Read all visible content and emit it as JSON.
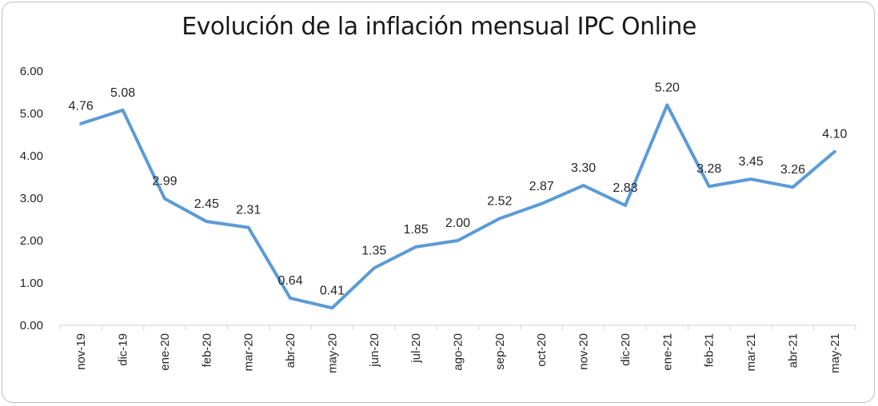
{
  "chart_data": {
    "type": "line",
    "title": "Evolución de la inflación mensual IPC Online",
    "xlabel": "",
    "ylabel": "",
    "ylim": [
      0,
      6
    ],
    "yticks": [
      "0.00",
      "1.00",
      "2.00",
      "3.00",
      "4.00",
      "5.00",
      "6.00"
    ],
    "categories": [
      "nov-19",
      "dic-19",
      "ene-20",
      "feb-20",
      "mar-20",
      "abr-20",
      "may-20",
      "jun-20",
      "jul-20",
      "ago-20",
      "sep-20",
      "oct-20",
      "nov-20",
      "dic-20",
      "ene-21",
      "feb-21",
      "mar-21",
      "abr-21",
      "may-21"
    ],
    "series": [
      {
        "values": [
          4.76,
          5.08,
          2.99,
          2.45,
          2.31,
          0.64,
          0.41,
          1.35,
          1.85,
          2.0,
          2.52,
          2.87,
          3.3,
          2.83,
          5.2,
          3.28,
          3.45,
          3.26,
          4.1
        ],
        "labels": [
          "4.76",
          "5.08",
          "2.99",
          "2.45",
          "2.31",
          "0.64",
          "0.41",
          "1.35",
          "1.85",
          "2.00",
          "2.52",
          "2.87",
          "3.30",
          "2.83",
          "5.20",
          "3.28",
          "3.45",
          "3.26",
          "4.10"
        ]
      }
    ],
    "grid": false,
    "legend": "none",
    "colors": {
      "line": "#5b9bd5",
      "axis": "#d9d9d9",
      "text": "#262626"
    }
  }
}
